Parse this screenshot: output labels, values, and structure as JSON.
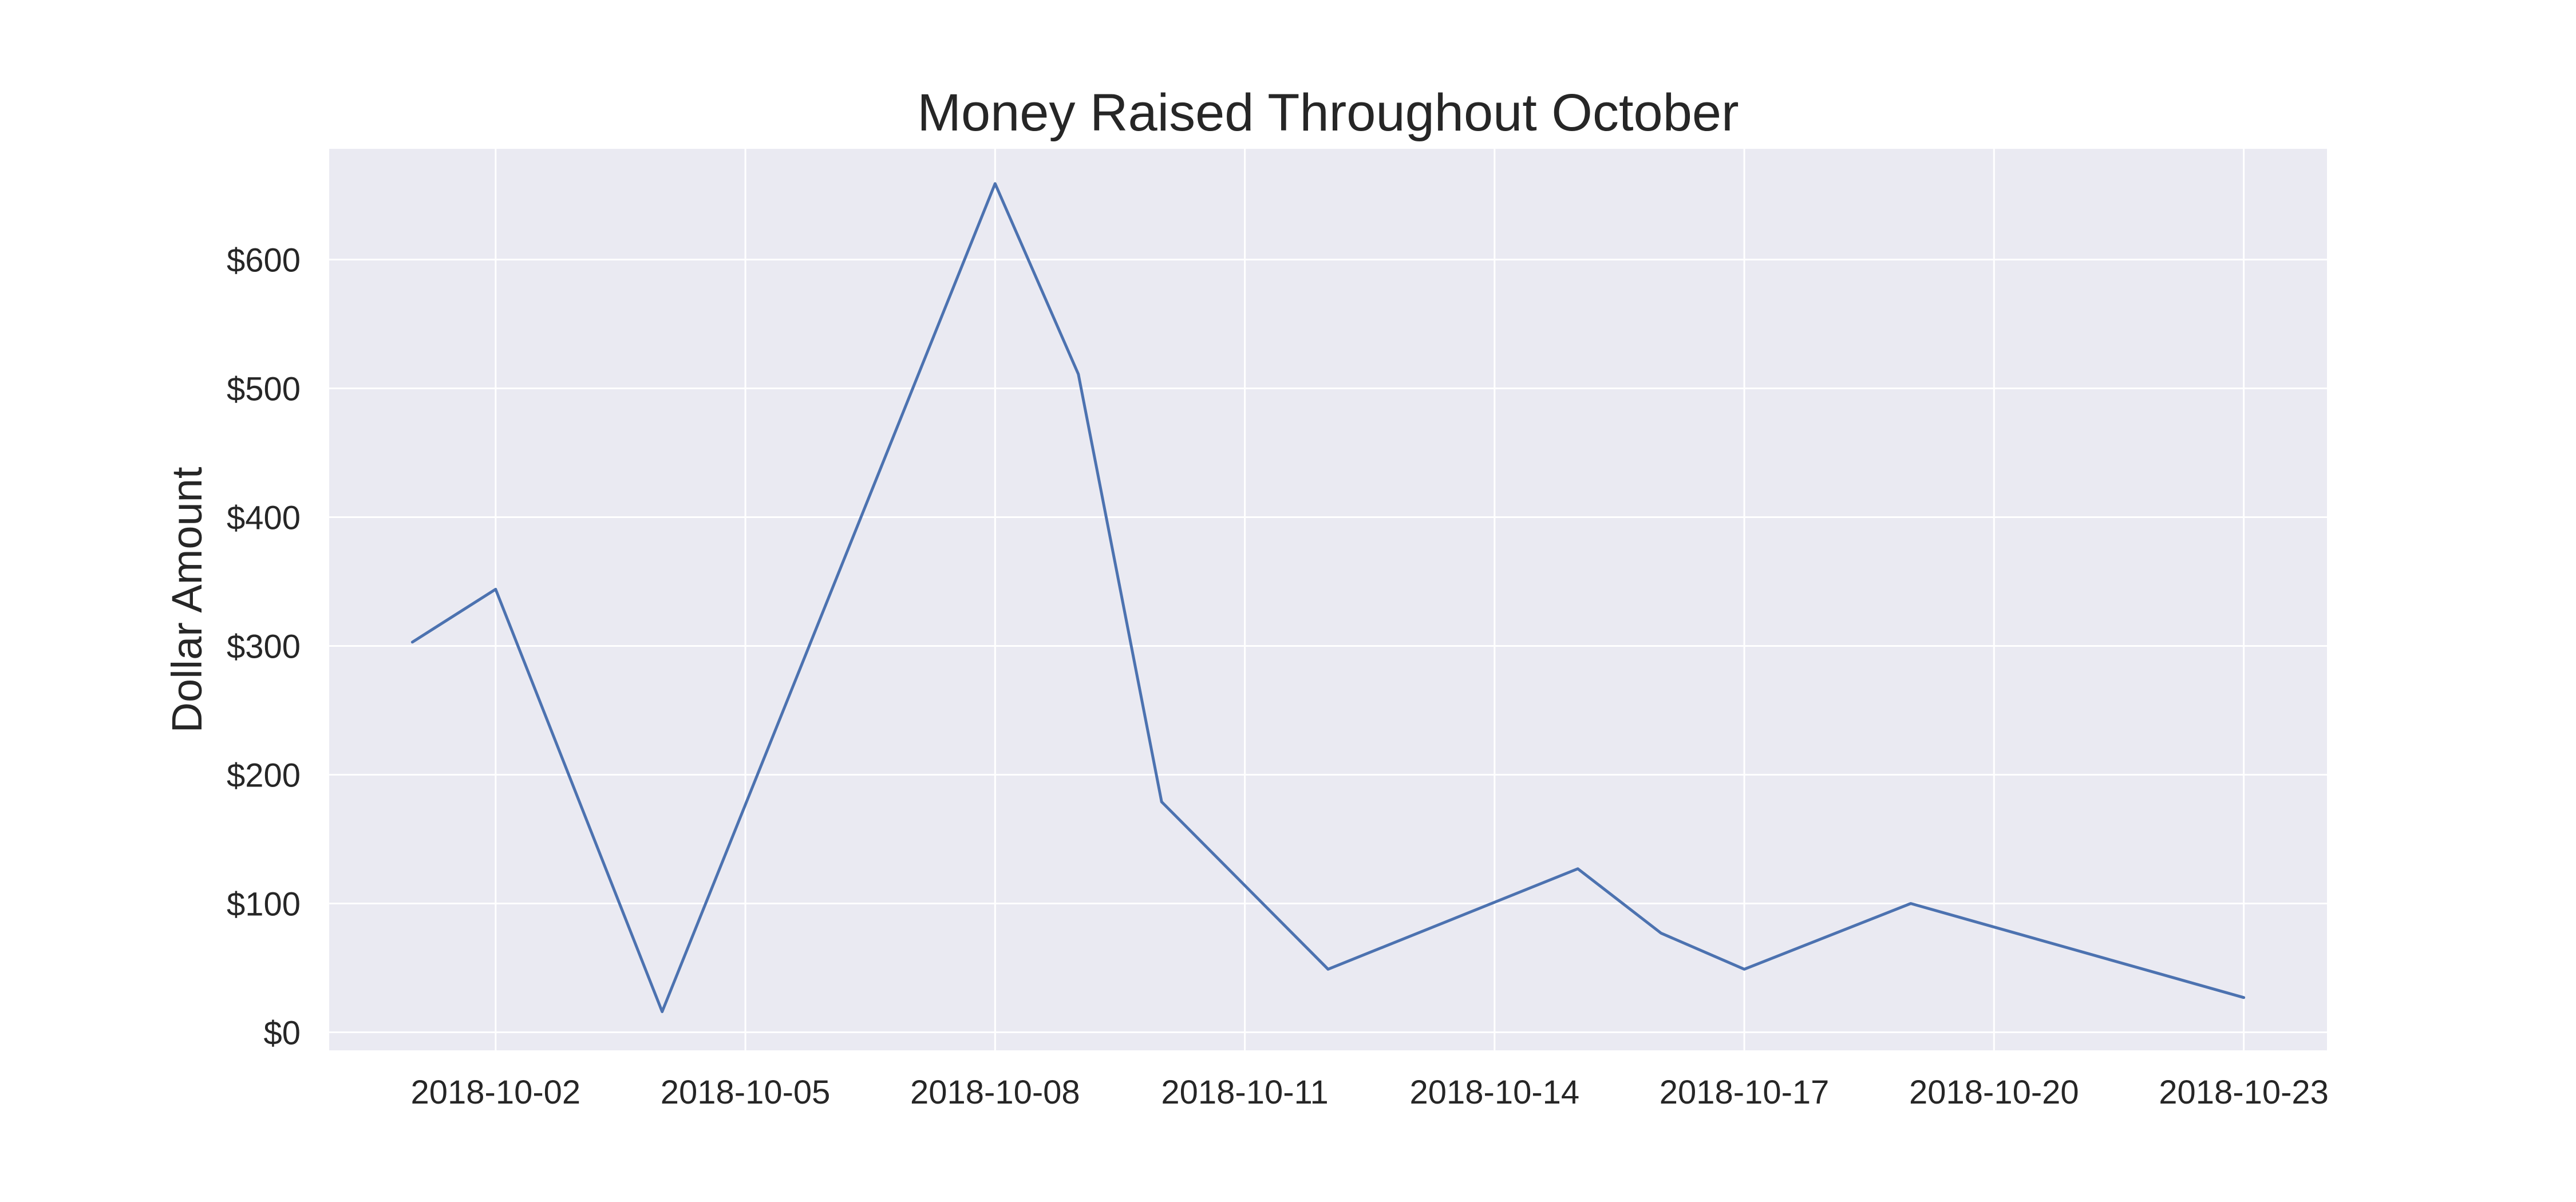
{
  "chart_data": {
    "type": "line",
    "title": "Money Raised Throughout October",
    "xlabel": "",
    "ylabel": "Dollar Amount",
    "x_type": "date",
    "xlim": [
      "2018-09-30",
      "2018-10-24"
    ],
    "ylim": [
      -14,
      686
    ],
    "grid": true,
    "legend": "none",
    "colors": {
      "background": "#eaeaf2",
      "grid": "#ffffff",
      "line": "#4c72b0",
      "text": "#262626"
    },
    "x_ticks": [
      "2018-10-02",
      "2018-10-05",
      "2018-10-08",
      "2018-10-11",
      "2018-10-14",
      "2018-10-17",
      "2018-10-20",
      "2018-10-23"
    ],
    "x_tick_labels": [
      "2018-10-02",
      "2018-10-05",
      "2018-10-08",
      "2018-10-11",
      "2018-10-14",
      "2018-10-17",
      "2018-10-20",
      "2018-10-23"
    ],
    "y_ticks": [
      0,
      100,
      200,
      300,
      400,
      500,
      600
    ],
    "y_tick_labels": [
      "$0",
      "$100",
      "$200",
      "$300",
      "$400",
      "$500",
      "$600"
    ],
    "series": [
      {
        "x": [
          "2018-10-01",
          "2018-10-02",
          "2018-10-04",
          "2018-10-08",
          "2018-10-09",
          "2018-10-10",
          "2018-10-12",
          "2018-10-15",
          "2018-10-16",
          "2018-10-17",
          "2018-10-19",
          "2018-10-23"
        ],
        "y": [
          303,
          344,
          16,
          659,
          511,
          179,
          49,
          127,
          77,
          49,
          100,
          27
        ]
      }
    ]
  }
}
